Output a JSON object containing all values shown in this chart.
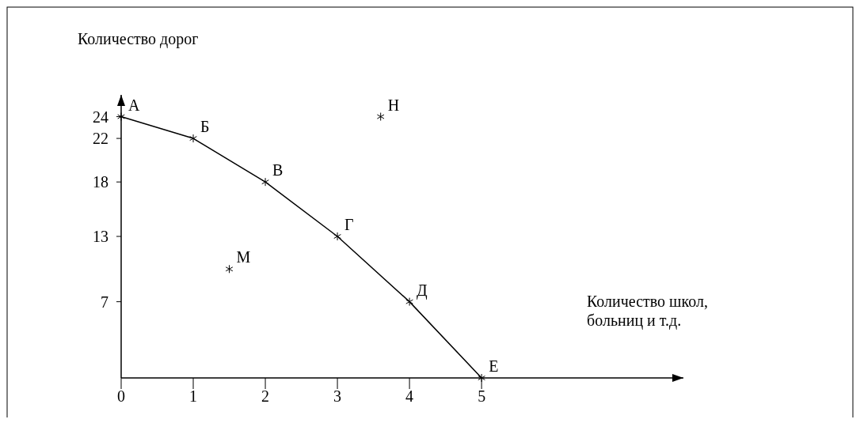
{
  "chart_data": {
    "type": "line",
    "xlabel": "Количество школ, больниц и т.д.",
    "ylabel": "Количество дорог",
    "xlim": [
      0,
      7.8
    ],
    "ylim": [
      0,
      26
    ],
    "xticks": [
      0,
      1,
      2,
      3,
      4,
      5
    ],
    "yticks": [
      7,
      13,
      18,
      22,
      24
    ],
    "grid": false,
    "series": [
      {
        "x": [
          0,
          1,
          2,
          3,
          4,
          5
        ],
        "values": [
          24,
          22,
          18,
          13,
          7,
          0
        ],
        "color": "#000000",
        "line_style": "solid"
      },
      {
        "type": "scatter",
        "x": [
          0,
          1,
          2,
          3,
          4,
          5,
          1.5,
          3.6
        ],
        "values": [
          24,
          22,
          18,
          13,
          7,
          0,
          10,
          24
        ],
        "color": "#000000",
        "marker": "cross"
      }
    ],
    "annotations": [
      {
        "text": "А",
        "x": 0,
        "y": 24
      },
      {
        "text": "Б",
        "x": 1,
        "y": 22
      },
      {
        "text": "В",
        "x": 2,
        "y": 18
      },
      {
        "text": "Г",
        "x": 3,
        "y": 13
      },
      {
        "text": "Д",
        "x": 4,
        "y": 7
      },
      {
        "text": "Е",
        "x": 5,
        "y": 0
      },
      {
        "text": "М",
        "x": 1.5,
        "y": 10
      },
      {
        "text": "Н",
        "x": 3.6,
        "y": 24
      }
    ]
  }
}
